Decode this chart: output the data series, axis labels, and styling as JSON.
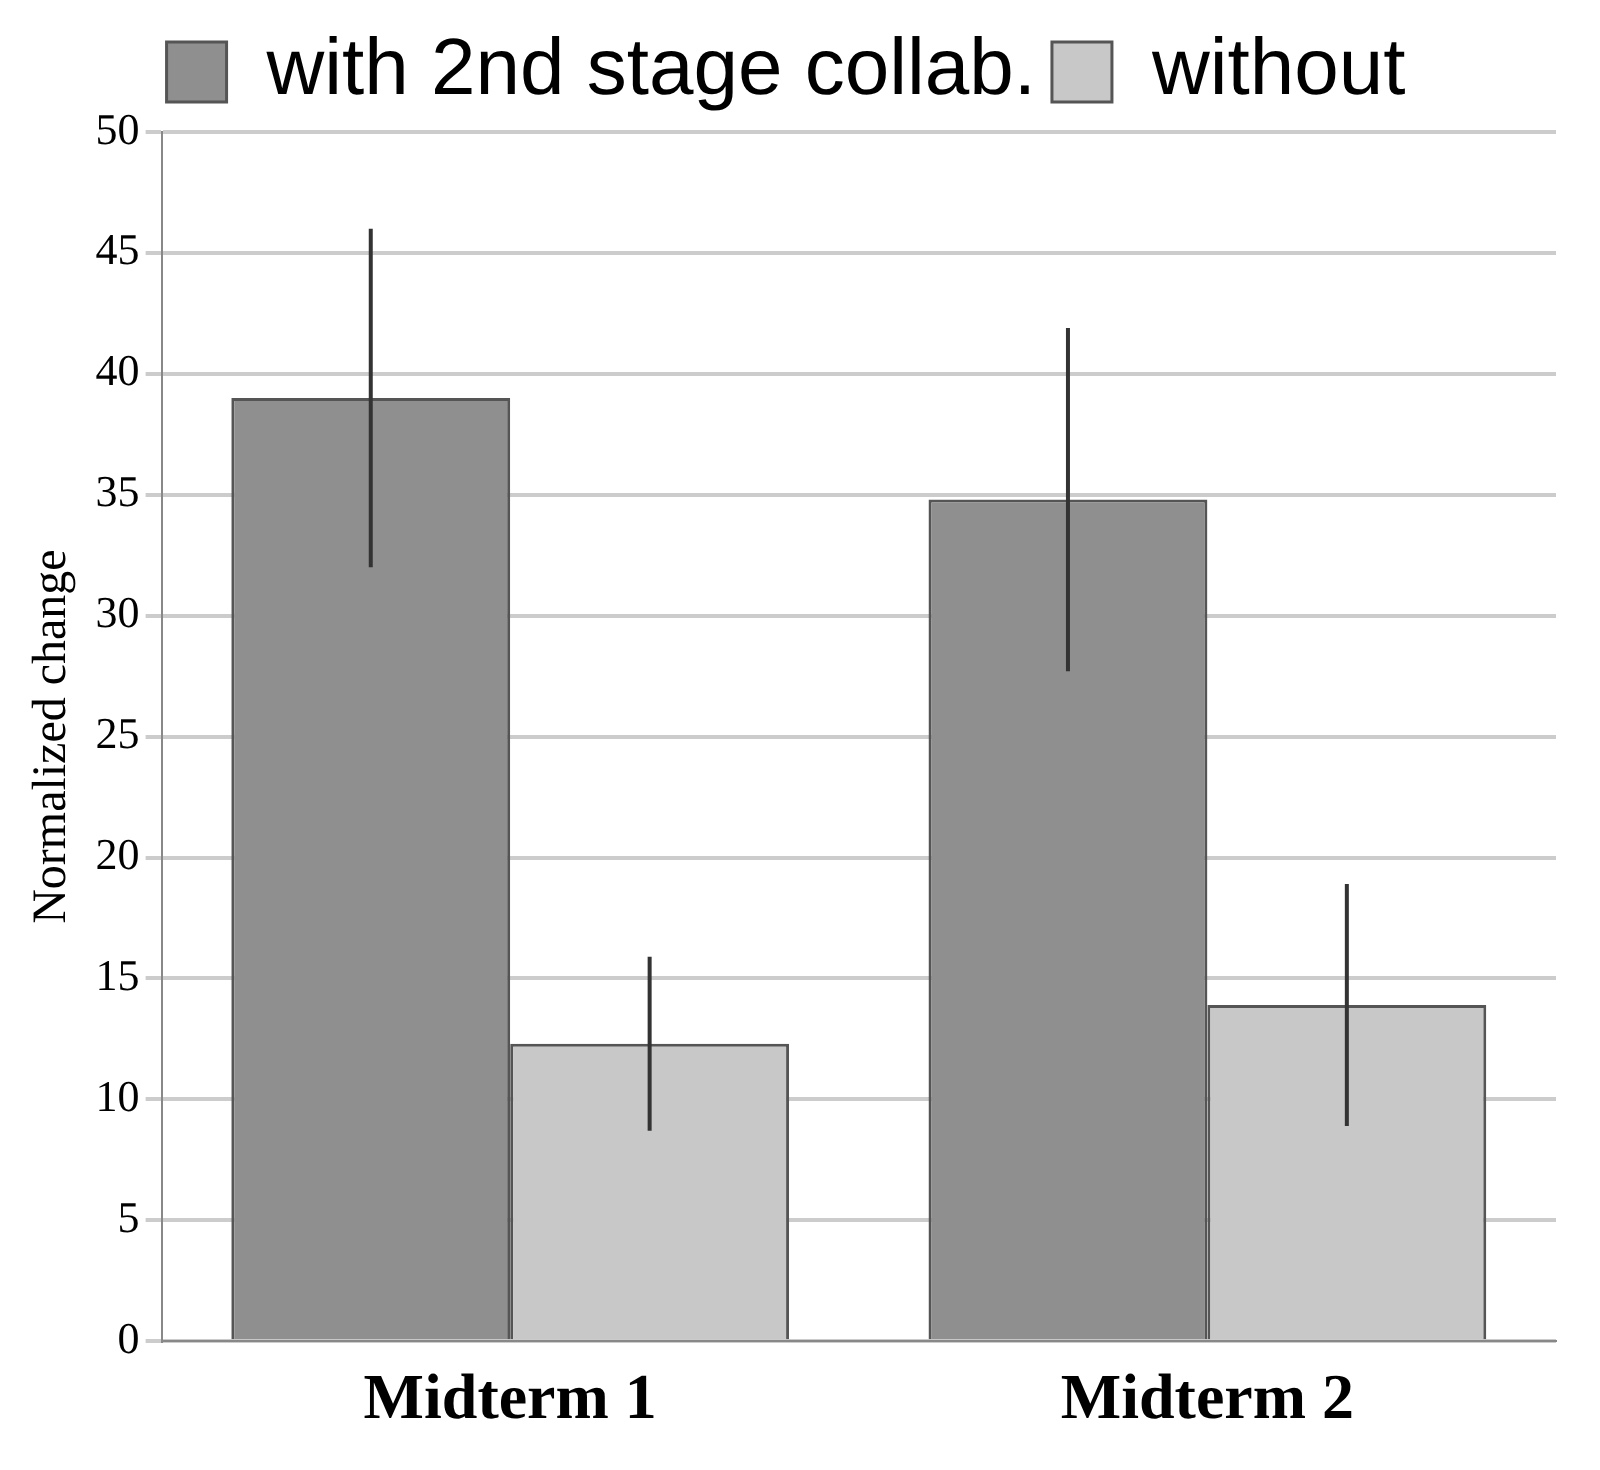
{
  "chart_data": {
    "type": "bar",
    "ylabel": "Normalized change",
    "categories": [
      "Midterm 1",
      "Midterm 2"
    ],
    "series": [
      {
        "name": "with 2nd stage collab.",
        "color": "#8f8f8f",
        "values": [
          39,
          34.8
        ],
        "errors": [
          7,
          7.1
        ]
      },
      {
        "name": "without",
        "color": "#c8c8c8",
        "values": [
          12.3,
          13.9
        ],
        "errors": [
          3.6,
          5
        ]
      }
    ],
    "ylim": [
      0,
      50
    ],
    "yticks": [
      0,
      5,
      10,
      15,
      20,
      25,
      30,
      35,
      40,
      45,
      50
    ],
    "grid": "y",
    "legend": "top"
  }
}
